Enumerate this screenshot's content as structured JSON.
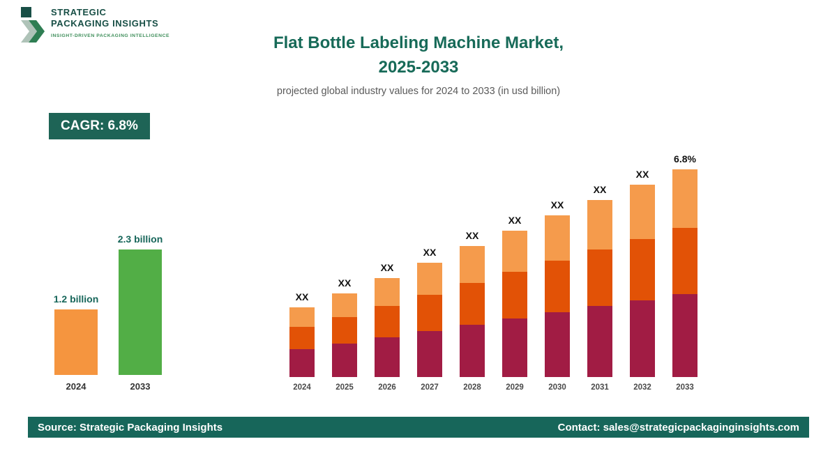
{
  "brand": {
    "name_line1": "STRATEGIC",
    "name_line2": "PACKAGING INSIGHTS",
    "tagline": "INSIGHT-DRIVEN PACKAGING INTELLIGENCE"
  },
  "header": {
    "title_line1": "Flat Bottle Labeling Machine Market,",
    "title_line2": "2025-2033",
    "subtitle": "projected global industry values for 2024 to 2033 (in usd billion)"
  },
  "cagr": {
    "label": "CAGR: 6.8%"
  },
  "footer": {
    "source": "Source: Strategic Packaging Insights",
    "contact": "Contact: sales@strategicpackaginginsights.com"
  },
  "colors": {
    "brand_green": "#17665A",
    "badge_green": "#1E6456",
    "accent_orange": "#F5953F",
    "accent_green": "#52AE46",
    "stack_bottom": "#A11C44",
    "stack_middle": "#E25206",
    "stack_top": "#F59B4C"
  },
  "chart_data": [
    {
      "type": "bar",
      "title": "2024 vs 2033 market value",
      "unit": "usd billion",
      "categories": [
        "2024",
        "2033"
      ],
      "values": [
        1.2,
        2.3
      ],
      "value_labels": [
        "1.2 billion",
        "2.3 billion"
      ],
      "colors": [
        "#F5953F",
        "#52AE46"
      ],
      "ylim": [
        0,
        2.3
      ]
    },
    {
      "type": "stacked-bar",
      "title": "Flat Bottle Labeling Machine Market, 2025-2033",
      "categories": [
        "2024",
        "2025",
        "2026",
        "2027",
        "2028",
        "2029",
        "2030",
        "2031",
        "2032",
        "2033"
      ],
      "series": [
        {
          "name": "segment-bottom",
          "color": "#A11C44",
          "values": [
            40,
            48,
            57,
            66,
            75,
            84,
            93,
            102,
            110,
            119
          ]
        },
        {
          "name": "segment-middle",
          "color": "#E25206",
          "values": [
            32,
            38,
            45,
            52,
            60,
            67,
            74,
            81,
            88,
            95
          ]
        },
        {
          "name": "segment-top",
          "color": "#F59B4C",
          "values": [
            28,
            34,
            40,
            46,
            53,
            59,
            65,
            71,
            78,
            84
          ]
        }
      ],
      "totals_relative": [
        100,
        120,
        142,
        164,
        188,
        210,
        232,
        254,
        276,
        298
      ],
      "bar_labels": [
        "XX",
        "XX",
        "XX",
        "XX",
        "XX",
        "XX",
        "XX",
        "XX",
        "XX",
        "6.8%"
      ],
      "legend_position": "none",
      "grid": false
    }
  ]
}
